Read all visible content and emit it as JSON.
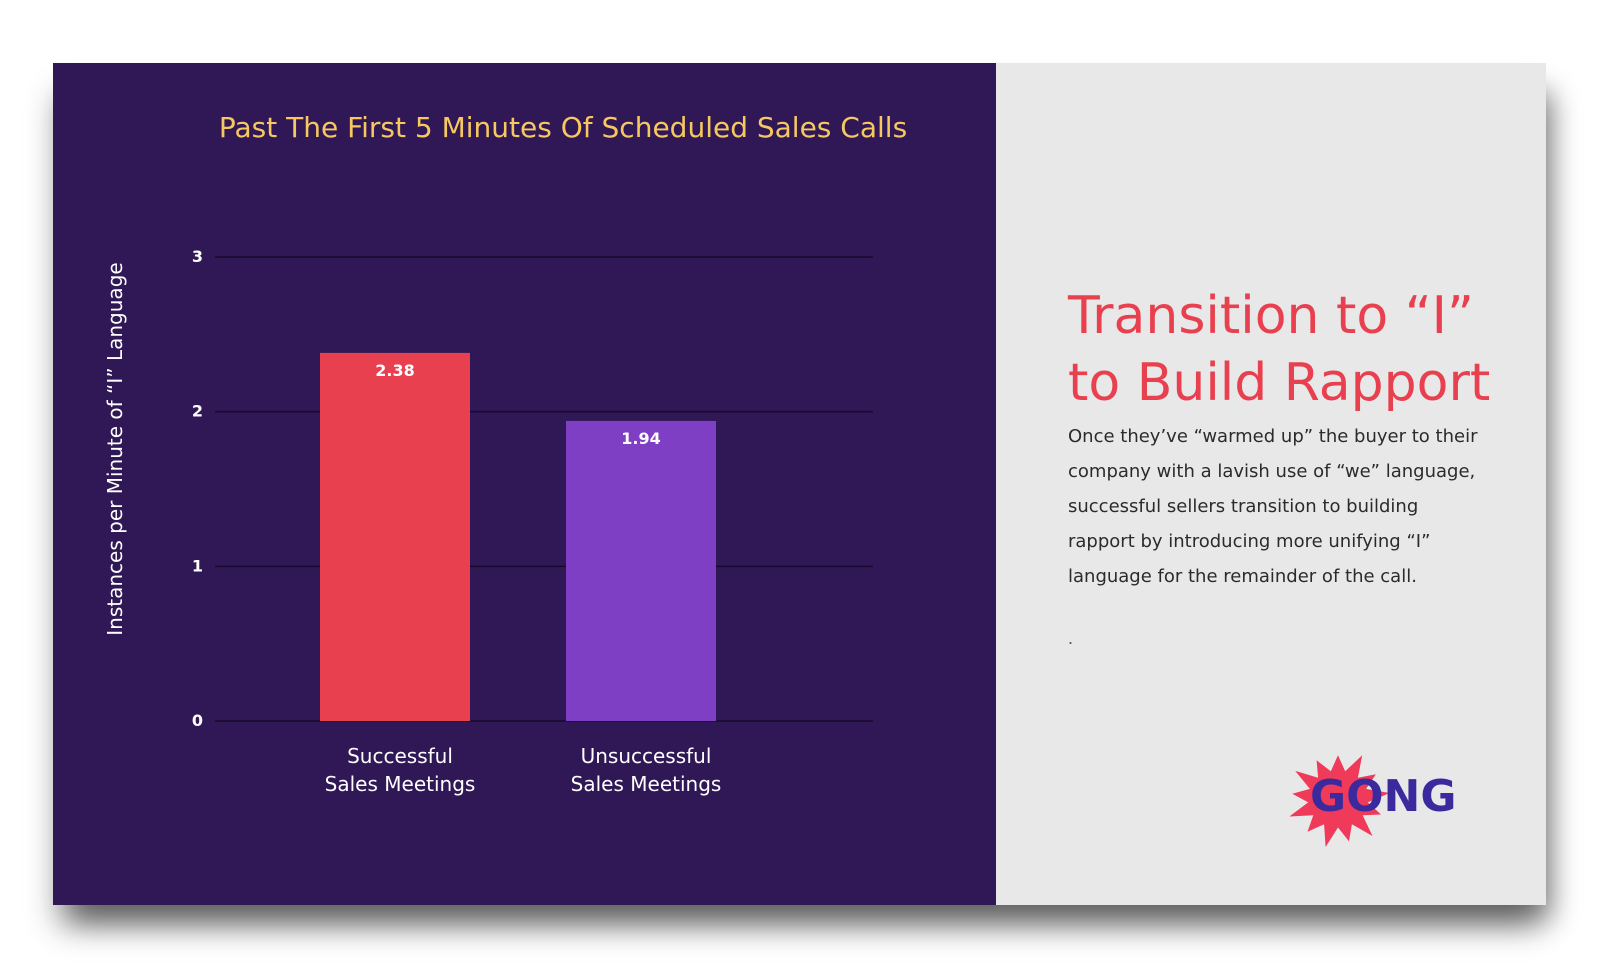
{
  "chart_data": {
    "type": "bar",
    "title": "Past The First 5 Minutes Of Scheduled Sales Calls",
    "ylabel": "Instances per Minute of “I” Language",
    "xlabel": "",
    "categories": [
      [
        "Successful",
        "Sales Meetings"
      ],
      [
        "Unsuccessful",
        "Sales Meetings"
      ]
    ],
    "values": [
      2.38,
      1.94
    ],
    "value_labels": [
      "2.38",
      "1.94"
    ],
    "colors": [
      "#e8404f",
      "#7f3fc4"
    ],
    "ylim": [
      0,
      3
    ],
    "yticks": [
      0,
      1,
      2,
      3
    ],
    "grid": true
  },
  "headline": [
    "Transition to “I”",
    "to Build Rapport"
  ],
  "body": "Once they’ve “warmed up” the buyer to their company with a lavish use of “we” language, successful sellers transition to building rapport by introducing more unifying “I” language for the remainder of the call.",
  "footnote": ".",
  "logo": {
    "text": "GONG",
    "burst_color": "#f03a5a",
    "text_color": "#3b2a9e"
  }
}
